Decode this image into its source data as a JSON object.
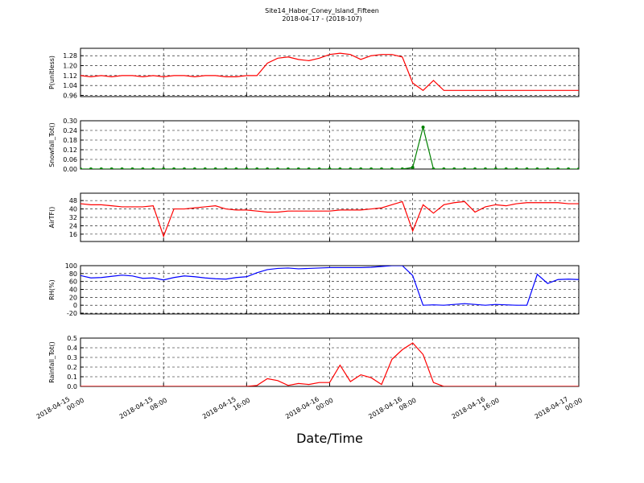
{
  "chart_data": [
    {
      "type": "line",
      "title": "Site14_Haber_Coney_Island_Fifteen",
      "subtitle": "2018-04-17 - (2018-107)",
      "ylabel": "P(unitless)",
      "x": [
        "2018-04-15 00:00",
        "2018-04-15 01:00",
        "2018-04-15 02:00",
        "2018-04-15 03:00",
        "2018-04-15 04:00",
        "2018-04-15 05:00",
        "2018-04-15 06:00",
        "2018-04-15 07:00",
        "2018-04-15 08:00",
        "2018-04-15 09:00",
        "2018-04-15 10:00",
        "2018-04-15 11:00",
        "2018-04-15 12:00",
        "2018-04-15 13:00",
        "2018-04-15 14:00",
        "2018-04-15 15:00",
        "2018-04-15 16:00",
        "2018-04-15 17:00",
        "2018-04-15 18:00",
        "2018-04-15 19:00",
        "2018-04-15 20:00",
        "2018-04-15 21:00",
        "2018-04-15 22:00",
        "2018-04-15 23:00",
        "2018-04-16 00:00",
        "2018-04-16 01:00",
        "2018-04-16 02:00",
        "2018-04-16 03:00",
        "2018-04-16 04:00",
        "2018-04-16 05:00",
        "2018-04-16 06:00",
        "2018-04-16 07:00",
        "2018-04-16 08:00",
        "2018-04-16 09:00",
        "2018-04-16 10:00",
        "2018-04-16 11:00",
        "2018-04-16 12:00",
        "2018-04-16 13:00",
        "2018-04-16 14:00",
        "2018-04-16 15:00",
        "2018-04-16 16:00",
        "2018-04-16 17:00",
        "2018-04-16 18:00",
        "2018-04-16 19:00",
        "2018-04-16 20:00",
        "2018-04-16 21:00",
        "2018-04-16 22:00",
        "2018-04-16 23:00",
        "2018-04-17 00:00"
      ],
      "series": [
        {
          "name": "P(unitless)",
          "color": "#ff0000",
          "values": [
            1.12,
            1.11,
            1.12,
            1.11,
            1.12,
            1.12,
            1.11,
            1.12,
            1.11,
            1.12,
            1.12,
            1.11,
            1.12,
            1.12,
            1.11,
            1.11,
            1.12,
            1.12,
            1.22,
            1.26,
            1.27,
            1.25,
            1.24,
            1.26,
            1.29,
            1.3,
            1.29,
            1.25,
            1.28,
            1.29,
            1.29,
            1.27,
            1.06,
            1.0,
            1.08,
            1.0,
            1.0,
            1.0,
            1.0,
            1.0,
            1.0,
            1.0,
            1.0,
            1.0,
            1.0,
            1.0,
            1.0,
            1.0,
            1.0
          ]
        }
      ],
      "xlim": [
        "2018-04-15 00:00",
        "2018-04-17 00:00"
      ],
      "xticks": [
        "2018-04-15 00:00",
        "2018-04-15 08:00",
        "2018-04-15 16:00",
        "2018-04-16 00:00",
        "2018-04-16 08:00",
        "2018-04-16 16:00",
        "2018-04-17 00:00"
      ],
      "ylim": [
        0.95,
        1.34
      ],
      "yticks": [
        0.96,
        1.04,
        1.12,
        {
          "value": 1.2,
          "label": "1.20"
        },
        1.28
      ],
      "grid": true
    },
    {
      "type": "line",
      "ylabel": "Snowfall_Tot()",
      "markers": true,
      "x": [
        "2018-04-15 00:00",
        "2018-04-15 01:00",
        "2018-04-15 02:00",
        "2018-04-15 03:00",
        "2018-04-15 04:00",
        "2018-04-15 05:00",
        "2018-04-15 06:00",
        "2018-04-15 07:00",
        "2018-04-15 08:00",
        "2018-04-15 09:00",
        "2018-04-15 10:00",
        "2018-04-15 11:00",
        "2018-04-15 12:00",
        "2018-04-15 13:00",
        "2018-04-15 14:00",
        "2018-04-15 15:00",
        "2018-04-15 16:00",
        "2018-04-15 17:00",
        "2018-04-15 18:00",
        "2018-04-15 19:00",
        "2018-04-15 20:00",
        "2018-04-15 21:00",
        "2018-04-15 22:00",
        "2018-04-15 23:00",
        "2018-04-16 00:00",
        "2018-04-16 01:00",
        "2018-04-16 02:00",
        "2018-04-16 03:00",
        "2018-04-16 04:00",
        "2018-04-16 05:00",
        "2018-04-16 06:00",
        "2018-04-16 07:00",
        "2018-04-16 08:00",
        "2018-04-16 09:00",
        "2018-04-16 10:00",
        "2018-04-16 11:00",
        "2018-04-16 12:00",
        "2018-04-16 13:00",
        "2018-04-16 14:00",
        "2018-04-16 15:00",
        "2018-04-16 16:00",
        "2018-04-16 17:00",
        "2018-04-16 18:00",
        "2018-04-16 19:00",
        "2018-04-16 20:00",
        "2018-04-16 21:00",
        "2018-04-16 22:00",
        "2018-04-16 23:00",
        "2018-04-17 00:00"
      ],
      "series": [
        {
          "name": "Snowfall_Tot()",
          "color": "#008000",
          "values": [
            0,
            0,
            0,
            0,
            0,
            0,
            0,
            0,
            0,
            0,
            0,
            0,
            0,
            0,
            0,
            0,
            0,
            0,
            0,
            0,
            0,
            0,
            0,
            0,
            0,
            0,
            0,
            0,
            0,
            0,
            0,
            0,
            0.01,
            0.26,
            0,
            0,
            0,
            0,
            0,
            0,
            0,
            0,
            0,
            0,
            0,
            0,
            0,
            0,
            0
          ]
        }
      ],
      "xlim": [
        "2018-04-15 00:00",
        "2018-04-17 00:00"
      ],
      "xticks": [
        "2018-04-15 00:00",
        "2018-04-15 08:00",
        "2018-04-15 16:00",
        "2018-04-16 00:00",
        "2018-04-16 08:00",
        "2018-04-16 16:00",
        "2018-04-17 00:00"
      ],
      "ylim": [
        0,
        0.3
      ],
      "yticks": [
        {
          "value": 0,
          "label": "0.00"
        },
        {
          "value": 0.06,
          "label": "0.06"
        },
        {
          "value": 0.12,
          "label": "0.12"
        },
        {
          "value": 0.18,
          "label": "0.18"
        },
        {
          "value": 0.24,
          "label": "0.24"
        },
        {
          "value": 0.3,
          "label": "0.30"
        }
      ],
      "grid": true
    },
    {
      "type": "line",
      "ylabel": "AirTF()",
      "x": [
        "2018-04-15 00:00",
        "2018-04-15 01:00",
        "2018-04-15 02:00",
        "2018-04-15 03:00",
        "2018-04-15 04:00",
        "2018-04-15 05:00",
        "2018-04-15 06:00",
        "2018-04-15 07:00",
        "2018-04-15 08:00",
        "2018-04-15 09:00",
        "2018-04-15 10:00",
        "2018-04-15 11:00",
        "2018-04-15 12:00",
        "2018-04-15 13:00",
        "2018-04-15 14:00",
        "2018-04-15 15:00",
        "2018-04-15 16:00",
        "2018-04-15 17:00",
        "2018-04-15 18:00",
        "2018-04-15 19:00",
        "2018-04-15 20:00",
        "2018-04-15 21:00",
        "2018-04-15 22:00",
        "2018-04-15 23:00",
        "2018-04-16 00:00",
        "2018-04-16 01:00",
        "2018-04-16 02:00",
        "2018-04-16 03:00",
        "2018-04-16 04:00",
        "2018-04-16 05:00",
        "2018-04-16 06:00",
        "2018-04-16 07:00",
        "2018-04-16 08:00",
        "2018-04-16 09:00",
        "2018-04-16 10:00",
        "2018-04-16 11:00",
        "2018-04-16 12:00",
        "2018-04-16 13:00",
        "2018-04-16 14:00",
        "2018-04-16 15:00",
        "2018-04-16 16:00",
        "2018-04-16 17:00",
        "2018-04-16 18:00",
        "2018-04-16 19:00",
        "2018-04-16 20:00",
        "2018-04-16 21:00",
        "2018-04-16 22:00",
        "2018-04-16 23:00",
        "2018-04-17 00:00"
      ],
      "series": [
        {
          "name": "AirTF()",
          "color": "#ff0000",
          "values": [
            45,
            44,
            44,
            43,
            42,
            42,
            42,
            43,
            14,
            40,
            40,
            41,
            42,
            43,
            40,
            39,
            39,
            38,
            37,
            37,
            38,
            38,
            38,
            38,
            38,
            39,
            39,
            39,
            40,
            41,
            44,
            47,
            19,
            44,
            36,
            44,
            46,
            47,
            37,
            42,
            44,
            43,
            45,
            46,
            46,
            46,
            46,
            45,
            45
          ]
        }
      ],
      "xlim": [
        "2018-04-15 00:00",
        "2018-04-17 00:00"
      ],
      "xticks": [
        "2018-04-15 00:00",
        "2018-04-15 08:00",
        "2018-04-15 16:00",
        "2018-04-16 00:00",
        "2018-04-16 08:00",
        "2018-04-16 16:00",
        "2018-04-17 00:00"
      ],
      "ylim": [
        9,
        55
      ],
      "yticks": [
        16,
        24,
        32,
        40,
        48
      ],
      "grid": true
    },
    {
      "type": "line",
      "ylabel": "RH(%)",
      "x": [
        "2018-04-15 00:00",
        "2018-04-15 01:00",
        "2018-04-15 02:00",
        "2018-04-15 03:00",
        "2018-04-15 04:00",
        "2018-04-15 05:00",
        "2018-04-15 06:00",
        "2018-04-15 07:00",
        "2018-04-15 08:00",
        "2018-04-15 09:00",
        "2018-04-15 10:00",
        "2018-04-15 11:00",
        "2018-04-15 12:00",
        "2018-04-15 13:00",
        "2018-04-15 14:00",
        "2018-04-15 15:00",
        "2018-04-15 16:00",
        "2018-04-15 17:00",
        "2018-04-15 18:00",
        "2018-04-15 19:00",
        "2018-04-15 20:00",
        "2018-04-15 21:00",
        "2018-04-15 22:00",
        "2018-04-15 23:00",
        "2018-04-16 00:00",
        "2018-04-16 01:00",
        "2018-04-16 02:00",
        "2018-04-16 03:00",
        "2018-04-16 04:00",
        "2018-04-16 05:00",
        "2018-04-16 06:00",
        "2018-04-16 07:00",
        "2018-04-16 08:00",
        "2018-04-16 09:00",
        "2018-04-16 10:00",
        "2018-04-16 11:00",
        "2018-04-16 12:00",
        "2018-04-16 13:00",
        "2018-04-16 14:00",
        "2018-04-16 15:00",
        "2018-04-16 16:00",
        "2018-04-16 17:00",
        "2018-04-16 18:00",
        "2018-04-16 19:00",
        "2018-04-16 20:00",
        "2018-04-16 21:00",
        "2018-04-16 22:00",
        "2018-04-16 23:00",
        "2018-04-17 00:00"
      ],
      "series": [
        {
          "name": "RH(%)",
          "color": "#0000ff",
          "values": [
            75,
            69,
            70,
            73,
            76,
            74,
            68,
            69,
            64,
            70,
            74,
            72,
            69,
            67,
            66,
            70,
            72,
            82,
            90,
            93,
            94,
            92,
            93,
            94,
            95,
            95,
            95,
            95,
            96,
            98,
            100,
            100,
            75,
            0,
            1,
            0,
            2,
            4,
            2,
            0,
            2,
            1,
            0,
            0,
            78,
            55,
            65,
            66,
            65
          ]
        }
      ],
      "xlim": [
        "2018-04-15 00:00",
        "2018-04-17 00:00"
      ],
      "xticks": [
        "2018-04-15 00:00",
        "2018-04-15 08:00",
        "2018-04-15 16:00",
        "2018-04-16 00:00",
        "2018-04-16 08:00",
        "2018-04-16 16:00",
        "2018-04-17 00:00"
      ],
      "ylim": [
        -22,
        100
      ],
      "yticks": [
        -20,
        0,
        20,
        40,
        60,
        80,
        100
      ],
      "grid": true
    },
    {
      "type": "line",
      "ylabel": "Rainfall_Tot()",
      "xlabel": "Date/Time",
      "x": [
        "2018-04-15 00:00",
        "2018-04-15 01:00",
        "2018-04-15 02:00",
        "2018-04-15 03:00",
        "2018-04-15 04:00",
        "2018-04-15 05:00",
        "2018-04-15 06:00",
        "2018-04-15 07:00",
        "2018-04-15 08:00",
        "2018-04-15 09:00",
        "2018-04-15 10:00",
        "2018-04-15 11:00",
        "2018-04-15 12:00",
        "2018-04-15 13:00",
        "2018-04-15 14:00",
        "2018-04-15 15:00",
        "2018-04-15 16:00",
        "2018-04-15 17:00",
        "2018-04-15 18:00",
        "2018-04-15 19:00",
        "2018-04-15 20:00",
        "2018-04-15 21:00",
        "2018-04-15 22:00",
        "2018-04-15 23:00",
        "2018-04-16 00:00",
        "2018-04-16 01:00",
        "2018-04-16 02:00",
        "2018-04-16 03:00",
        "2018-04-16 04:00",
        "2018-04-16 05:00",
        "2018-04-16 06:00",
        "2018-04-16 07:00",
        "2018-04-16 08:00",
        "2018-04-16 09:00",
        "2018-04-16 10:00",
        "2018-04-16 11:00",
        "2018-04-16 12:00",
        "2018-04-16 13:00",
        "2018-04-16 14:00",
        "2018-04-16 15:00",
        "2018-04-16 16:00",
        "2018-04-16 17:00",
        "2018-04-16 18:00",
        "2018-04-16 19:00",
        "2018-04-16 20:00",
        "2018-04-16 21:00",
        "2018-04-16 22:00",
        "2018-04-16 23:00",
        "2018-04-17 00:00"
      ],
      "series": [
        {
          "name": "Rainfall_Tot()",
          "color": "#ff0000",
          "values": [
            0,
            0,
            0,
            0,
            0,
            0,
            0,
            0,
            0,
            0,
            0,
            0,
            0,
            0,
            0,
            0,
            0,
            0.01,
            0.08,
            0.06,
            0.01,
            0.03,
            0.02,
            0.04,
            0.04,
            0.22,
            0.05,
            0.12,
            0.09,
            0.02,
            0.28,
            0.38,
            0.45,
            0.33,
            0.04,
            0,
            0,
            0,
            0,
            0,
            0,
            0,
            0,
            0,
            0,
            0,
            0,
            0,
            0
          ]
        }
      ],
      "xlim": [
        "2018-04-15 00:00",
        "2018-04-17 00:00"
      ],
      "xticks": [
        "2018-04-15 00:00",
        "2018-04-15 08:00",
        "2018-04-15 16:00",
        "2018-04-16 00:00",
        "2018-04-16 08:00",
        "2018-04-16 16:00",
        "2018-04-17 00:00"
      ],
      "ylim": [
        0,
        0.5
      ],
      "yticks": [
        {
          "value": 0,
          "label": "0.0"
        },
        0.1,
        0.2,
        0.3,
        0.4,
        0.5
      ],
      "grid": true
    }
  ]
}
